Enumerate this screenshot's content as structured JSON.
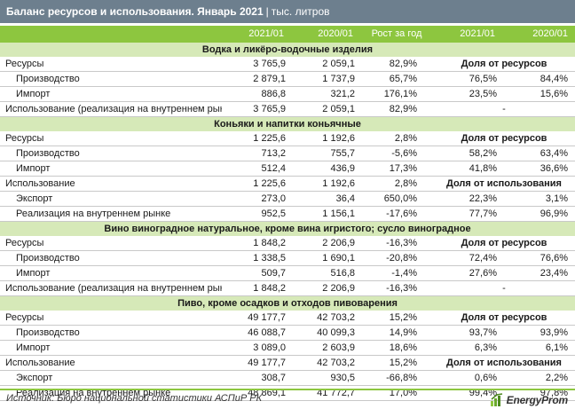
{
  "header": {
    "title": "Баланс ресурсов и использования. Январь 2021",
    "separator": "|",
    "unit": "тыс. литров"
  },
  "table": {
    "columns": [
      "",
      "2021/01",
      "2020/01",
      "Рост за год",
      "2021/01",
      "2020/01"
    ],
    "sections": [
      {
        "title": "Водка и ликёро-водочные изделия",
        "rows": [
          {
            "label": "Ресурсы",
            "indent": false,
            "v2021": "3 765,9",
            "v2020": "2 059,1",
            "growth": "82,9%",
            "note": "Доля от ресурсов"
          },
          {
            "label": "Производство",
            "indent": true,
            "v2021": "2 879,1",
            "v2020": "1 737,9",
            "growth": "65,7%",
            "s2021": "76,5%",
            "s2020": "84,4%"
          },
          {
            "label": "Импорт",
            "indent": true,
            "v2021": "886,8",
            "v2020": "321,2",
            "growth": "176,1%",
            "s2021": "23,5%",
            "s2020": "15,6%"
          },
          {
            "label": "Использование (реализация на внутреннем рынке)",
            "indent": false,
            "v2021": "3 765,9",
            "v2020": "2 059,1",
            "growth": "82,9%",
            "dash": "-"
          }
        ]
      },
      {
        "title": "Коньяки и напитки коньячные",
        "rows": [
          {
            "label": "Ресурсы",
            "indent": false,
            "v2021": "1 225,6",
            "v2020": "1 192,6",
            "growth": "2,8%",
            "note": "Доля от ресурсов"
          },
          {
            "label": "Производство",
            "indent": true,
            "v2021": "713,2",
            "v2020": "755,7",
            "growth": "-5,6%",
            "s2021": "58,2%",
            "s2020": "63,4%"
          },
          {
            "label": "Импорт",
            "indent": true,
            "v2021": "512,4",
            "v2020": "436,9",
            "growth": "17,3%",
            "s2021": "41,8%",
            "s2020": "36,6%"
          },
          {
            "label": "Использование",
            "indent": false,
            "v2021": "1 225,6",
            "v2020": "1 192,6",
            "growth": "2,8%",
            "note": "Доля от использования"
          },
          {
            "label": "Экспорт",
            "indent": true,
            "v2021": "273,0",
            "v2020": "36,4",
            "growth": "650,0%",
            "s2021": "22,3%",
            "s2020": "3,1%"
          },
          {
            "label": "Реализация на внутреннем рынке",
            "indent": true,
            "v2021": "952,5",
            "v2020": "1 156,1",
            "growth": "-17,6%",
            "s2021": "77,7%",
            "s2020": "96,9%"
          }
        ]
      },
      {
        "title": "Вино виноградное натуральное, кроме вина игристого; сусло виноградное",
        "rows": [
          {
            "label": "Ресурсы",
            "indent": false,
            "v2021": "1 848,2",
            "v2020": "2 206,9",
            "growth": "-16,3%",
            "note": "Доля от ресурсов"
          },
          {
            "label": "Производство",
            "indent": true,
            "v2021": "1 338,5",
            "v2020": "1 690,1",
            "growth": "-20,8%",
            "s2021": "72,4%",
            "s2020": "76,6%"
          },
          {
            "label": "Импорт",
            "indent": true,
            "v2021": "509,7",
            "v2020": "516,8",
            "growth": "-1,4%",
            "s2021": "27,6%",
            "s2020": "23,4%"
          },
          {
            "label": "Использование (реализация на внутреннем рынке)",
            "indent": false,
            "v2021": "1 848,2",
            "v2020": "2 206,9",
            "growth": "-16,3%",
            "dash": "-"
          }
        ]
      },
      {
        "title": "Пиво, кроме осадков и отходов пивоварения",
        "rows": [
          {
            "label": "Ресурсы",
            "indent": false,
            "v2021": "49 177,7",
            "v2020": "42 703,2",
            "growth": "15,2%",
            "note": "Доля от ресурсов"
          },
          {
            "label": "Производство",
            "indent": true,
            "v2021": "46 088,7",
            "v2020": "40 099,3",
            "growth": "14,9%",
            "s2021": "93,7%",
            "s2020": "93,9%"
          },
          {
            "label": "Импорт",
            "indent": true,
            "v2021": "3 089,0",
            "v2020": "2 603,9",
            "growth": "18,6%",
            "s2021": "6,3%",
            "s2020": "6,1%"
          },
          {
            "label": "Использование",
            "indent": false,
            "v2021": "49 177,7",
            "v2020": "42 703,2",
            "growth": "15,2%",
            "note": "Доля от использования"
          },
          {
            "label": "Экспорт",
            "indent": true,
            "v2021": "308,7",
            "v2020": "930,5",
            "growth": "-66,8%",
            "s2021": "0,6%",
            "s2020": "2,2%"
          },
          {
            "label": "Реализация на внутреннем рынке",
            "indent": true,
            "v2021": "48 869,1",
            "v2020": "41 772,7",
            "growth": "17,0%",
            "s2021": "99,4%",
            "s2020": "97,8%"
          }
        ]
      }
    ]
  },
  "footer": {
    "source": "Источник: Бюро национальной статистики АСПиР РК",
    "brand": "EnergyProm",
    "logo_icon": "energyprom-logo-icon"
  },
  "colors": {
    "title_bg": "#6d7f8e",
    "header_bg": "#8dc63f",
    "section_bg": "#d6e9b8",
    "footer_line": "#8dc63f"
  }
}
